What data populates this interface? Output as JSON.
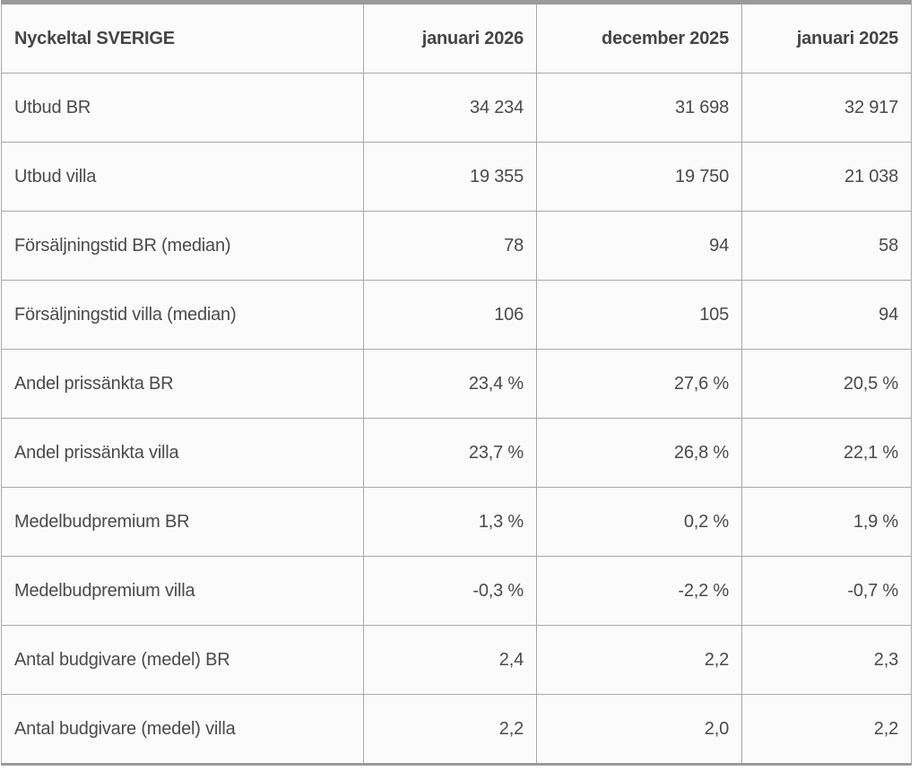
{
  "table": {
    "header": {
      "label": "Nyckeltal SVERIGE",
      "columns": [
        "januari 2026",
        "december 2025",
        "januari 2025"
      ]
    },
    "rows": [
      {
        "label": "Utbud BR",
        "values": [
          "34 234",
          "31 698",
          "32 917"
        ]
      },
      {
        "label": "Utbud villa",
        "values": [
          "19 355",
          "19 750",
          "21 038"
        ]
      },
      {
        "label": "Försäljningstid BR (median)",
        "values": [
          "78",
          "94",
          "58"
        ]
      },
      {
        "label": "Försäljningstid villa (median)",
        "values": [
          "106",
          "105",
          "94"
        ]
      },
      {
        "label": "Andel prissänkta BR",
        "values": [
          "23,4 %",
          "27,6 %",
          "20,5 %"
        ]
      },
      {
        "label": "Andel prissänkta villa",
        "values": [
          "23,7 %",
          "26,8 %",
          "22,1 %"
        ]
      },
      {
        "label": "Medelbudpremium BR",
        "values": [
          "1,3 %",
          "0,2 %",
          "1,9 %"
        ]
      },
      {
        "label": "Medelbudpremium villa",
        "values": [
          "-0,3 %",
          "-2,2 %",
          "-0,7 %"
        ]
      },
      {
        "label": "Antal budgivare (medel) BR",
        "values": [
          "2,4",
          "2,2",
          "2,3"
        ]
      },
      {
        "label": "Antal budgivare (medel) villa",
        "values": [
          "2,2",
          "2,0",
          "2,2"
        ]
      }
    ],
    "colors": {
      "border": "#a8a8a8",
      "accent_border": "#9a9a9a",
      "text": "#4a4a4a",
      "cell_bg": "#fbfbfb"
    }
  }
}
